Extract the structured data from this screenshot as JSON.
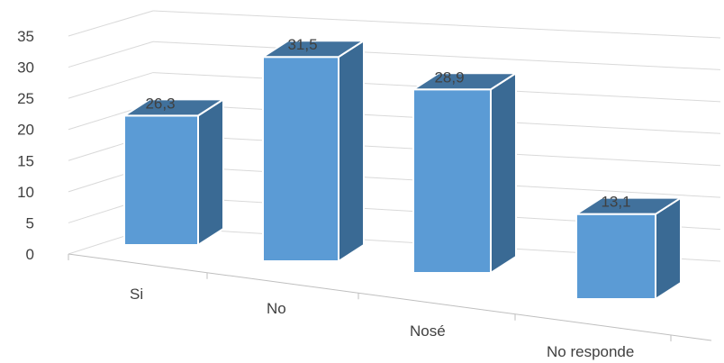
{
  "chart_data": {
    "type": "bar",
    "categories": [
      "Si",
      "No",
      "Nosé",
      "No responde"
    ],
    "values": [
      26.3,
      31.5,
      28.9,
      13.1
    ],
    "data_labels": [
      "26,3",
      "31,5",
      "28,9",
      "13,1"
    ],
    "y_ticks": [
      "0",
      "5",
      "10",
      "15",
      "20",
      "25",
      "30",
      "35"
    ],
    "ylim": [
      0,
      35
    ],
    "grid": true,
    "legend": "none",
    "style": "3d-perspective",
    "colors": {
      "front": "#5b9bd5",
      "side": "#3a6a94",
      "top": "#41719c",
      "outline": "#ffffff"
    }
  }
}
